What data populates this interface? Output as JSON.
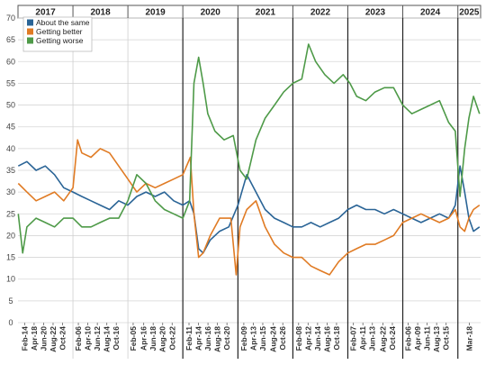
{
  "chart_data": {
    "type": "line",
    "title": "",
    "xlabel": "",
    "ylabel": "",
    "ylim": [
      0,
      70
    ],
    "yticks": [
      0,
      5,
      10,
      15,
      20,
      25,
      30,
      35,
      40,
      45,
      50,
      55,
      60,
      65,
      70
    ],
    "grid": "horizontal",
    "legend_position": "top-left",
    "x_range": [
      "2017-01-01",
      "2025-06-01"
    ],
    "years": [
      {
        "label": "2017",
        "start": "2017-01-01",
        "end": "2018-01-01"
      },
      {
        "label": "2018",
        "start": "2018-01-01",
        "end": "2019-01-01"
      },
      {
        "label": "2019",
        "start": "2019-01-01",
        "end": "2020-01-01"
      },
      {
        "label": "2020",
        "start": "2020-01-01",
        "end": "2021-01-01"
      },
      {
        "label": "2021",
        "start": "2021-01-01",
        "end": "2022-01-01"
      },
      {
        "label": "2022",
        "start": "2022-01-01",
        "end": "2023-01-01"
      },
      {
        "label": "2023",
        "start": "2023-01-01",
        "end": "2024-01-01"
      },
      {
        "label": "2024",
        "start": "2024-01-01",
        "end": "2025-01-01"
      },
      {
        "label": "2025",
        "start": "2025-01-01",
        "end": "2025-06-01"
      }
    ],
    "x_ticks": [
      {
        "label": "Feb-14",
        "date": "2017-02-14"
      },
      {
        "label": "Apr-18",
        "date": "2017-04-18"
      },
      {
        "label": "Jun-20",
        "date": "2017-06-20"
      },
      {
        "label": "Aug-22",
        "date": "2017-08-22"
      },
      {
        "label": "Oct-24",
        "date": "2017-10-24"
      },
      {
        "label": "Feb-06",
        "date": "2018-02-06"
      },
      {
        "label": "Apr-10",
        "date": "2018-04-10"
      },
      {
        "label": "Jun-12",
        "date": "2018-06-12"
      },
      {
        "label": "Aug-14",
        "date": "2018-08-14"
      },
      {
        "label": "Oct-16",
        "date": "2018-10-16"
      },
      {
        "label": "Feb-05",
        "date": "2019-02-05"
      },
      {
        "label": "Apr-16",
        "date": "2019-04-16"
      },
      {
        "label": "Jun-18",
        "date": "2019-06-18"
      },
      {
        "label": "Aug-20",
        "date": "2019-08-20"
      },
      {
        "label": "Oct-22",
        "date": "2019-10-22"
      },
      {
        "label": "Feb-11",
        "date": "2020-02-11"
      },
      {
        "label": "Apr-14",
        "date": "2020-04-14"
      },
      {
        "label": "Jun-16",
        "date": "2020-06-16"
      },
      {
        "label": "Aug-18",
        "date": "2020-08-18"
      },
      {
        "label": "Oct-20",
        "date": "2020-10-20"
      },
      {
        "label": "Feb-09",
        "date": "2021-02-09"
      },
      {
        "label": "Apr-13",
        "date": "2021-04-13"
      },
      {
        "label": "Jun-15",
        "date": "2021-06-15"
      },
      {
        "label": "Aug-24",
        "date": "2021-08-24"
      },
      {
        "label": "Oct-26",
        "date": "2021-10-26"
      },
      {
        "label": "Feb-08",
        "date": "2022-02-08"
      },
      {
        "label": "Apr-12",
        "date": "2022-04-12"
      },
      {
        "label": "Jun-14",
        "date": "2022-06-14"
      },
      {
        "label": "Aug-16",
        "date": "2022-08-16"
      },
      {
        "label": "Oct-18",
        "date": "2022-10-18"
      },
      {
        "label": "Feb-07",
        "date": "2023-02-07"
      },
      {
        "label": "Apr-11",
        "date": "2023-04-11"
      },
      {
        "label": "Jun-13",
        "date": "2023-06-13"
      },
      {
        "label": "Aug-22",
        "date": "2023-08-22"
      },
      {
        "label": "Oct-24",
        "date": "2023-10-24"
      },
      {
        "label": "Feb-06",
        "date": "2024-02-06"
      },
      {
        "label": "Apr-09",
        "date": "2024-04-09"
      },
      {
        "label": "Jun-11",
        "date": "2024-06-11"
      },
      {
        "label": "Aug-13",
        "date": "2024-08-13"
      },
      {
        "label": "Oct-15",
        "date": "2024-10-15"
      },
      {
        "label": "Mar-18",
        "date": "2025-03-18"
      }
    ],
    "series": [
      {
        "name": "About the same",
        "color": "#2a6496",
        "x": [
          "2017-01-03",
          "2017-03-01",
          "2017-05-01",
          "2017-07-01",
          "2017-09-01",
          "2017-11-01",
          "2018-01-01",
          "2018-03-01",
          "2018-05-01",
          "2018-07-01",
          "2018-09-01",
          "2018-11-01",
          "2019-01-01",
          "2019-03-01",
          "2019-05-01",
          "2019-07-01",
          "2019-09-01",
          "2019-11-01",
          "2020-01-01",
          "2020-02-15",
          "2020-03-15",
          "2020-04-15",
          "2020-05-15",
          "2020-07-01",
          "2020-09-01",
          "2020-11-01",
          "2021-01-01",
          "2021-03-01",
          "2021-05-01",
          "2021-07-01",
          "2021-09-01",
          "2021-11-01",
          "2022-01-01",
          "2022-03-01",
          "2022-05-01",
          "2022-07-01",
          "2022-09-01",
          "2022-11-01",
          "2023-01-01",
          "2023-03-01",
          "2023-05-01",
          "2023-07-01",
          "2023-09-01",
          "2023-11-01",
          "2024-01-01",
          "2024-03-01",
          "2024-05-01",
          "2024-07-01",
          "2024-09-01",
          "2024-11-01",
          "2024-12-15",
          "2025-01-15",
          "2025-02-15",
          "2025-03-15",
          "2025-04-15",
          "2025-05-25"
        ],
        "values": [
          36,
          37,
          35,
          36,
          34,
          31,
          30,
          29,
          28,
          27,
          26,
          28,
          27,
          29,
          30,
          29,
          30,
          28,
          27,
          28,
          25,
          17,
          16,
          19,
          21,
          22,
          27,
          34,
          30,
          26,
          24,
          23,
          22,
          22,
          23,
          22,
          23,
          24,
          26,
          27,
          26,
          26,
          25,
          26,
          25,
          24,
          23,
          24,
          25,
          24,
          27,
          36,
          30,
          24,
          21,
          22
        ]
      },
      {
        "name": "Getting better",
        "color": "#e07b24",
        "x": [
          "2017-01-03",
          "2017-03-01",
          "2017-05-01",
          "2017-07-01",
          "2017-09-01",
          "2017-11-01",
          "2018-01-01",
          "2018-02-01",
          "2018-03-01",
          "2018-05-01",
          "2018-07-01",
          "2018-09-01",
          "2018-11-01",
          "2019-01-01",
          "2019-03-01",
          "2019-05-01",
          "2019-07-01",
          "2019-09-01",
          "2019-11-01",
          "2020-01-01",
          "2020-02-20",
          "2020-03-15",
          "2020-04-15",
          "2020-05-15",
          "2020-07-01",
          "2020-09-01",
          "2020-11-15",
          "2020-12-20",
          "2021-01-15",
          "2021-03-01",
          "2021-05-01",
          "2021-07-01",
          "2021-09-01",
          "2021-11-01",
          "2022-01-01",
          "2022-03-01",
          "2022-05-01",
          "2022-07-01",
          "2022-09-01",
          "2022-11-01",
          "2023-01-01",
          "2023-03-01",
          "2023-05-01",
          "2023-07-01",
          "2023-09-01",
          "2023-11-01",
          "2024-01-01",
          "2024-03-01",
          "2024-05-01",
          "2024-07-01",
          "2024-09-01",
          "2024-11-01",
          "2024-12-15",
          "2025-01-15",
          "2025-02-15",
          "2025-03-15",
          "2025-04-15",
          "2025-05-25"
        ],
        "values": [
          32,
          30,
          28,
          29,
          30,
          28,
          31,
          42,
          39,
          38,
          40,
          39,
          36,
          33,
          30,
          32,
          31,
          32,
          33,
          34,
          38,
          25,
          15,
          16,
          20,
          24,
          24,
          11,
          22,
          26,
          28,
          22,
          18,
          16,
          15,
          15,
          13,
          12,
          11,
          14,
          16,
          17,
          18,
          18,
          19,
          20,
          23,
          24,
          25,
          24,
          23,
          24,
          26,
          22,
          21,
          24,
          26,
          27
        ]
      },
      {
        "name": "Getting worse",
        "color": "#4e9a48",
        "x": [
          "2017-01-03",
          "2017-02-01",
          "2017-03-01",
          "2017-05-01",
          "2017-07-01",
          "2017-09-01",
          "2017-11-01",
          "2018-01-01",
          "2018-03-01",
          "2018-05-01",
          "2018-07-01",
          "2018-09-01",
          "2018-11-01",
          "2019-01-01",
          "2019-03-01",
          "2019-05-01",
          "2019-07-01",
          "2019-09-01",
          "2019-11-01",
          "2020-01-01",
          "2020-02-15",
          "2020-03-15",
          "2020-04-15",
          "2020-05-15",
          "2020-06-15",
          "2020-08-01",
          "2020-10-01",
          "2020-12-01",
          "2021-01-15",
          "2021-03-01",
          "2021-05-01",
          "2021-07-01",
          "2021-09-01",
          "2021-11-01",
          "2022-01-01",
          "2022-03-01",
          "2022-04-15",
          "2022-06-01",
          "2022-08-01",
          "2022-10-01",
          "2022-12-01",
          "2023-01-15",
          "2023-03-01",
          "2023-05-01",
          "2023-07-01",
          "2023-09-01",
          "2023-11-01",
          "2024-01-01",
          "2024-03-01",
          "2024-05-01",
          "2024-07-01",
          "2024-09-01",
          "2024-11-01",
          "2024-12-15",
          "2025-01-15",
          "2025-02-15",
          "2025-03-15",
          "2025-04-15",
          "2025-05-25"
        ],
        "values": [
          25,
          16,
          22,
          24,
          23,
          22,
          24,
          24,
          22,
          22,
          23,
          24,
          24,
          28,
          34,
          32,
          28,
          26,
          25,
          24,
          28,
          55,
          61,
          55,
          48,
          44,
          42,
          43,
          35,
          33,
          42,
          47,
          50,
          53,
          55,
          56,
          64,
          60,
          57,
          55,
          57,
          55,
          52,
          51,
          53,
          54,
          54,
          50,
          48,
          49,
          50,
          51,
          46,
          44,
          29,
          40,
          47,
          52,
          48
        ]
      }
    ]
  }
}
